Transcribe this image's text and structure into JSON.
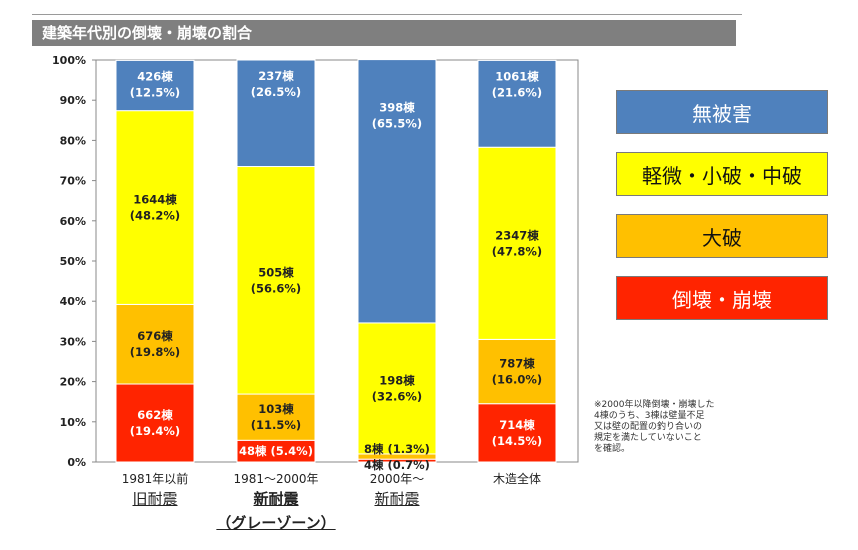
{
  "chart_data": {
    "type": "bar",
    "stacked": true,
    "normalized": true,
    "title": "建築年代別の倒壊・崩壊の割合",
    "ylim": [
      0,
      100
    ],
    "yticks": [
      "0%",
      "10%",
      "20%",
      "30%",
      "40%",
      "50%",
      "60%",
      "70%",
      "80%",
      "90%",
      "100%"
    ],
    "categories": [
      "1981年以前",
      "1981～2000年",
      "2000年～",
      "木造全体"
    ],
    "category_sublabels": [
      {
        "lines": [
          "旧耐震"
        ],
        "style": "underline"
      },
      {
        "lines": [
          "新耐震",
          "（グレーゾーン）"
        ],
        "style": "bold-underline"
      },
      {
        "lines": [
          "新耐震"
        ],
        "style": "underline"
      },
      {
        "lines": [],
        "style": "none"
      }
    ],
    "series": [
      {
        "name": "倒壊・崩壊",
        "color": "#ff2400",
        "values": [
          19.4,
          5.4,
          0.7,
          14.5
        ],
        "labels": [
          [
            "662棟",
            "(19.4%)"
          ],
          [
            "48棟 (5.4%)"
          ],
          [
            "4棟 (0.7%)"
          ],
          [
            "714棟",
            "(14.5%)"
          ]
        ]
      },
      {
        "name": "大破",
        "color": "#ffc000",
        "values": [
          19.8,
          11.5,
          1.3,
          16.0
        ],
        "labels": [
          [
            "676棟",
            "(19.8%)"
          ],
          [
            "103棟",
            "(11.5%)"
          ],
          [
            "8棟 (1.3%)"
          ],
          [
            "787棟",
            "(16.0%)"
          ]
        ]
      },
      {
        "name": "軽微・小破・中破",
        "color": "#ffff00",
        "values": [
          48.2,
          56.6,
          32.6,
          47.8
        ],
        "labels": [
          [
            "1644棟",
            "(48.2%)"
          ],
          [
            "505棟",
            "(56.6%)"
          ],
          [
            "198棟",
            "(32.6%)"
          ],
          [
            "2347棟",
            "(47.8%)"
          ]
        ]
      },
      {
        "name": "無被害",
        "color": "#4f81bd",
        "values": [
          12.5,
          26.5,
          65.5,
          21.6
        ],
        "labels": [
          [
            "426棟",
            "(12.5%)"
          ],
          [
            "237棟",
            "(26.5%)"
          ],
          [
            "398棟",
            "(65.5%)"
          ],
          [
            "1061棟",
            "(21.6%)"
          ]
        ]
      }
    ],
    "legend": {
      "placement": "right",
      "order": [
        "無被害",
        "軽微・小破・中破",
        "大破",
        "倒壊・崩壊"
      ]
    },
    "grid": false
  },
  "note": "※2000年以降倒壊・崩壊した\n4棟のうち、3棟は壁量不足\n又は壁の配置の釣り合いの\n規定を満たしていないこと\nを確認。"
}
